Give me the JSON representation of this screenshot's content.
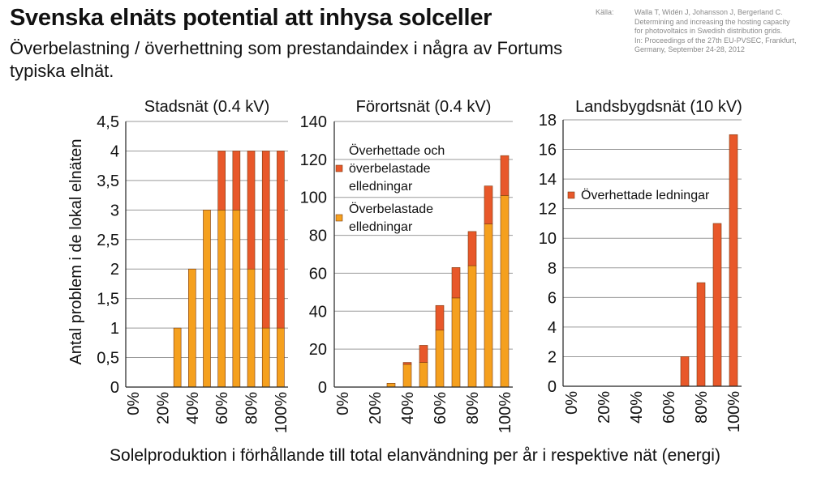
{
  "title": "Svenska elnäts potential att inhysa solceller",
  "subtitle": "Överbelastning / överhettning som prestandaindex i några av Fortums typiska elnät.",
  "source": {
    "label": "Källa:",
    "lines": [
      "Walla T, Widén J, Johansson J, Bergerland C.",
      "Determining and increasing the hosting capacity",
      "for photovoltaics in Swedish distribution grids.",
      "In: Proceedings of the 27th EU-PVSEC, Frankfurt,",
      "Germany, September 24-28, 2012"
    ]
  },
  "colors": {
    "orange": "#f5a01e",
    "red": "#e8582a",
    "edge": "#7a3a10",
    "grid": "#9a9a9a"
  },
  "chart_data": [
    {
      "type": "bar",
      "stacked": true,
      "title": "Stadsnät (0.4 kV)",
      "ylabel": "Antal problem i de lokal elnäten",
      "xlabel": "Solelproduktion i förhållande till total elanvändning per år i respektive nät (energi)",
      "categories": [
        "0%",
        "10%",
        "20%",
        "30%",
        "40%",
        "50%",
        "60%",
        "70%",
        "80%",
        "90%",
        "100%"
      ],
      "xtick_labels": [
        "0%",
        "20%",
        "40%",
        "60%",
        "80%",
        "100%"
      ],
      "ylim": [
        0,
        4.5
      ],
      "yticks": [
        "0",
        "0,5",
        "1",
        "1,5",
        "2",
        "2,5",
        "3",
        "3,5",
        "4",
        "4,5"
      ],
      "series": [
        {
          "key": "orange",
          "values": [
            0,
            0,
            0,
            1,
            2,
            3,
            3,
            3,
            2,
            1,
            1
          ]
        },
        {
          "key": "red",
          "values": [
            0,
            0,
            0,
            0,
            0,
            0,
            1,
            1,
            2,
            3,
            3
          ]
        }
      ]
    },
    {
      "type": "bar",
      "stacked": true,
      "title": "Förortsnät (0.4 kV)",
      "categories": [
        "0%",
        "10%",
        "20%",
        "30%",
        "40%",
        "50%",
        "60%",
        "70%",
        "80%",
        "90%",
        "100%"
      ],
      "xtick_labels": [
        "0%",
        "20%",
        "40%",
        "60%",
        "80%",
        "100%"
      ],
      "ylim": [
        0,
        140
      ],
      "yticks": [
        "0",
        "20",
        "40",
        "60",
        "80",
        "100",
        "120",
        "140"
      ],
      "legend": [
        {
          "key": "red",
          "lines": [
            "Överhettade och",
            "överbelastade",
            "elledningar"
          ]
        },
        {
          "key": "orange",
          "lines": [
            "Överbelastade",
            "elledningar"
          ]
        }
      ],
      "series": [
        {
          "key": "orange",
          "values": [
            0,
            0,
            0,
            2,
            12,
            13,
            30,
            47,
            64,
            86,
            101
          ]
        },
        {
          "key": "red",
          "values": [
            0,
            0,
            0,
            0,
            1,
            9,
            13,
            16,
            18,
            20,
            21
          ]
        }
      ]
    },
    {
      "type": "bar",
      "stacked": false,
      "title": "Landsbygdsnät (10 kV)",
      "categories": [
        "0%",
        "10%",
        "20%",
        "30%",
        "40%",
        "50%",
        "60%",
        "70%",
        "80%",
        "90%",
        "100%"
      ],
      "xtick_labels": [
        "0%",
        "20%",
        "40%",
        "60%",
        "80%",
        "100%"
      ],
      "ylim": [
        0,
        18
      ],
      "yticks": [
        "0",
        "2",
        "4",
        "6",
        "8",
        "10",
        "12",
        "14",
        "16",
        "18"
      ],
      "legend": [
        {
          "key": "red",
          "lines": [
            "Överhettade ledningar"
          ]
        }
      ],
      "series": [
        {
          "key": "red",
          "values": [
            0,
            0,
            0,
            0,
            0,
            0,
            0,
            2,
            7,
            11,
            17
          ]
        }
      ]
    }
  ]
}
